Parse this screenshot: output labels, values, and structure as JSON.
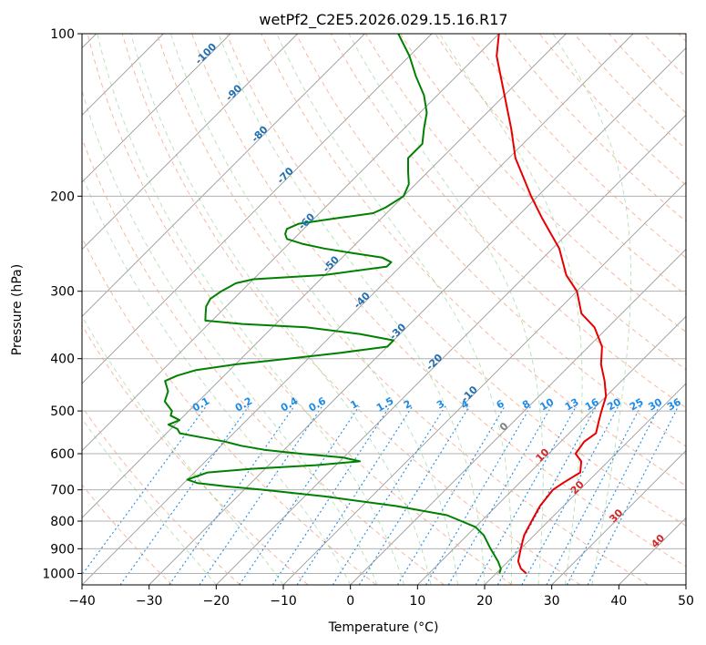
{
  "chart_data": {
    "type": "line",
    "title": "wetPf2_C2E5.2026.029.15.16.R17",
    "xlabel": "Temperature (°C)",
    "ylabel": "Pressure (hPa)",
    "xlim": [
      -40,
      50
    ],
    "ylim": [
      1050,
      100
    ],
    "yscale": "log",
    "skew": "skew-T",
    "x_ticks": [
      "−40",
      "−30",
      "−20",
      "−10",
      "0",
      "10",
      "20",
      "30",
      "40",
      "50"
    ],
    "y_ticks": [
      "100",
      "200",
      "300",
      "400",
      "500",
      "600",
      "700",
      "800",
      "900",
      "1000"
    ],
    "grid": true,
    "mixing_ratio_labels": [
      "0.1",
      "0.2",
      "0.4",
      "0.6",
      "1",
      "1.5",
      "2",
      "3",
      "4",
      "6",
      "8",
      "10",
      "13",
      "16",
      "20",
      "25",
      "30",
      "36"
    ],
    "dry_adiabat_labels": [
      "-100",
      "-90",
      "-80",
      "-70",
      "-60",
      "-50",
      "-40",
      "-30",
      "-20",
      "-10"
    ],
    "isotherm_labels": [
      "0",
      "10",
      "20",
      "30",
      "40"
    ],
    "series": [
      {
        "color": "#e60000",
        "pressure": [
          1000,
          980,
          950,
          900,
          850,
          800,
          750,
          700,
          680,
          650,
          620,
          600,
          570,
          550,
          520,
          500,
          470,
          440,
          410,
          380,
          350,
          330,
          300,
          280,
          250,
          220,
          200,
          170,
          150,
          130,
          110,
          100
        ],
        "temperature": [
          24.5,
          23,
          21.5,
          20,
          18.5,
          17.5,
          16.5,
          16,
          16.5,
          17.5,
          16,
          14,
          13.5,
          14,
          12.5,
          11.5,
          10,
          7.5,
          4.5,
          2,
          -2,
          -6,
          -10,
          -14,
          -19,
          -26,
          -31,
          -39,
          -44,
          -50,
          -57,
          -60
        ]
      },
      {
        "color": "#008000",
        "pressure": [
          1000,
          980,
          950,
          900,
          850,
          820,
          780,
          750,
          720,
          700,
          690,
          680,
          670,
          660,
          650,
          640,
          630,
          620,
          610,
          600,
          590,
          580,
          570,
          560,
          550,
          540,
          530,
          520,
          510,
          500,
          480,
          460,
          440,
          430,
          420,
          410,
          400,
          390,
          380,
          370,
          360,
          350,
          345,
          340,
          330,
          320,
          310,
          300,
          290,
          285,
          280,
          270,
          265,
          260,
          255,
          250,
          245,
          240,
          235,
          230,
          225,
          220,
          215,
          210,
          200,
          190,
          180,
          170,
          160,
          150,
          140,
          130,
          120,
          110,
          100
        ],
        "temperature": [
          20.5,
          20,
          18.5,
          15.5,
          12.5,
          10,
          4,
          -5,
          -17,
          -27,
          -33,
          -38,
          -40,
          -39,
          -38,
          -32,
          -23,
          -17,
          -20,
          -27,
          -33,
          -37,
          -40,
          -44,
          -48,
          -49,
          -51,
          -50,
          -52,
          -52.5,
          -55,
          -56,
          -58,
          -57,
          -55,
          -50,
          -43,
          -36,
          -30,
          -30,
          -36,
          -45,
          -55,
          -61,
          -62,
          -63,
          -63.5,
          -63,
          -62,
          -60,
          -50,
          -42,
          -42,
          -44,
          -49,
          -54,
          -58,
          -61,
          -62,
          -62.5,
          -61.5,
          -57,
          -52,
          -51,
          -50,
          -51,
          -53,
          -55,
          -55,
          -57,
          -59,
          -62,
          -66,
          -70,
          -75
        ]
      }
    ]
  }
}
